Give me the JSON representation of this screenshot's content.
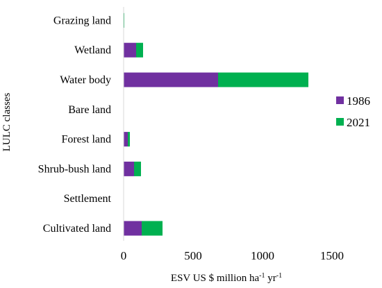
{
  "chart_data": {
    "type": "bar",
    "orientation": "horizontal",
    "stacked": true,
    "categories": [
      "Grazing land",
      "Wetland",
      "Water body",
      "Bare land",
      "Forest land",
      "Shrub-bush land",
      "Settlement",
      "Cultivated land"
    ],
    "series": [
      {
        "name": "1986",
        "color": "#7030a0",
        "values": [
          1,
          90,
          680,
          0,
          30,
          75,
          0,
          130
        ]
      },
      {
        "name": "2021",
        "color": "#00b050",
        "values": [
          1,
          50,
          650,
          0,
          15,
          50,
          0,
          150
        ]
      }
    ],
    "xlabel": "ESV US $ million ha",
    "xlabel_sup1": "-1",
    "xlabel_mid": " yr",
    "xlabel_sup2": "-1",
    "ylabel": "LULC classes",
    "xlim": [
      0,
      1500
    ],
    "xticks": [
      "0",
      "500",
      "1000",
      "1500"
    ],
    "grid": false,
    "legend_position": "right"
  }
}
